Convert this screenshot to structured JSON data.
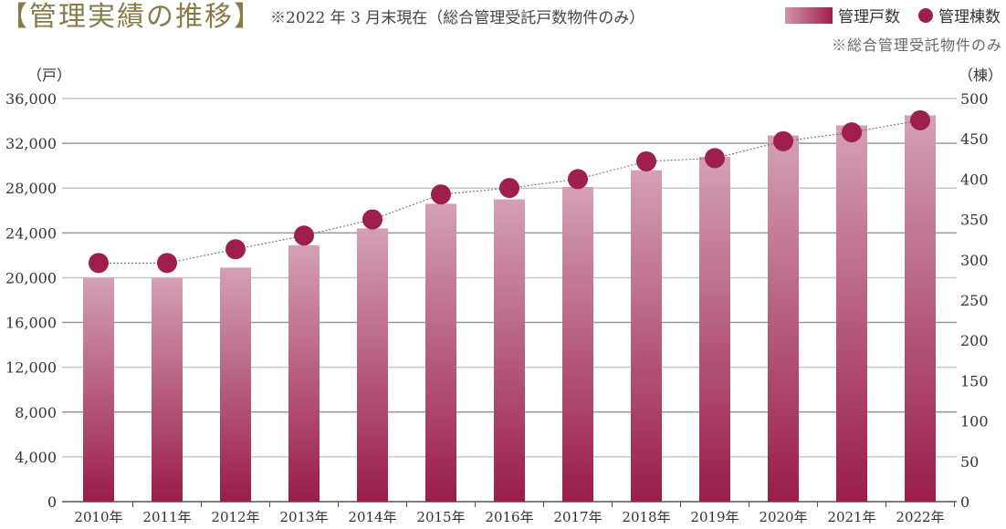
{
  "title": "【管理実績の推移】",
  "subtitle": "※2022 年 3 月末現在（総合管理受託戸数物件のみ）",
  "legend": {
    "bars": "管理戸数",
    "dots": "管理棟数"
  },
  "note": "※総合管理受託物件のみ",
  "colors": {
    "bar_top": "#d4a0b6",
    "bar_bottom": "#9a1c4a",
    "dot": "#9e1f4d",
    "title": "#8a7a4a"
  },
  "chart_data": {
    "type": "bar+line",
    "categories": [
      "2010年",
      "2011年",
      "2012年",
      "2013年",
      "2014年",
      "2015年",
      "2016年",
      "2017年",
      "2018年",
      "2019年",
      "2020年",
      "2021年",
      "2022年"
    ],
    "series": [
      {
        "name": "管理戸数",
        "type": "bar",
        "axis": "left",
        "values": [
          20000,
          20000,
          20900,
          22900,
          24400,
          26600,
          27000,
          28100,
          29600,
          30800,
          32700,
          33600,
          34500
        ]
      },
      {
        "name": "管理棟数",
        "type": "line-dots",
        "axis": "right",
        "values": [
          296,
          296,
          313,
          330,
          350,
          381,
          389,
          400,
          422,
          426,
          447,
          458,
          473
        ]
      }
    ],
    "y_left": {
      "label": "（戸）",
      "range": [
        0,
        36000
      ],
      "ticks": [
        "0",
        "4,000",
        "8,000",
        "12,000",
        "16,000",
        "20,000",
        "24,000",
        "28,000",
        "32,000",
        "36,000"
      ]
    },
    "y_right": {
      "label": "（棟）",
      "range": [
        0,
        500
      ],
      "ticks": [
        "0",
        "50",
        "100",
        "150",
        "200",
        "250",
        "300",
        "350",
        "400",
        "450",
        "500"
      ]
    },
    "grid": true
  }
}
